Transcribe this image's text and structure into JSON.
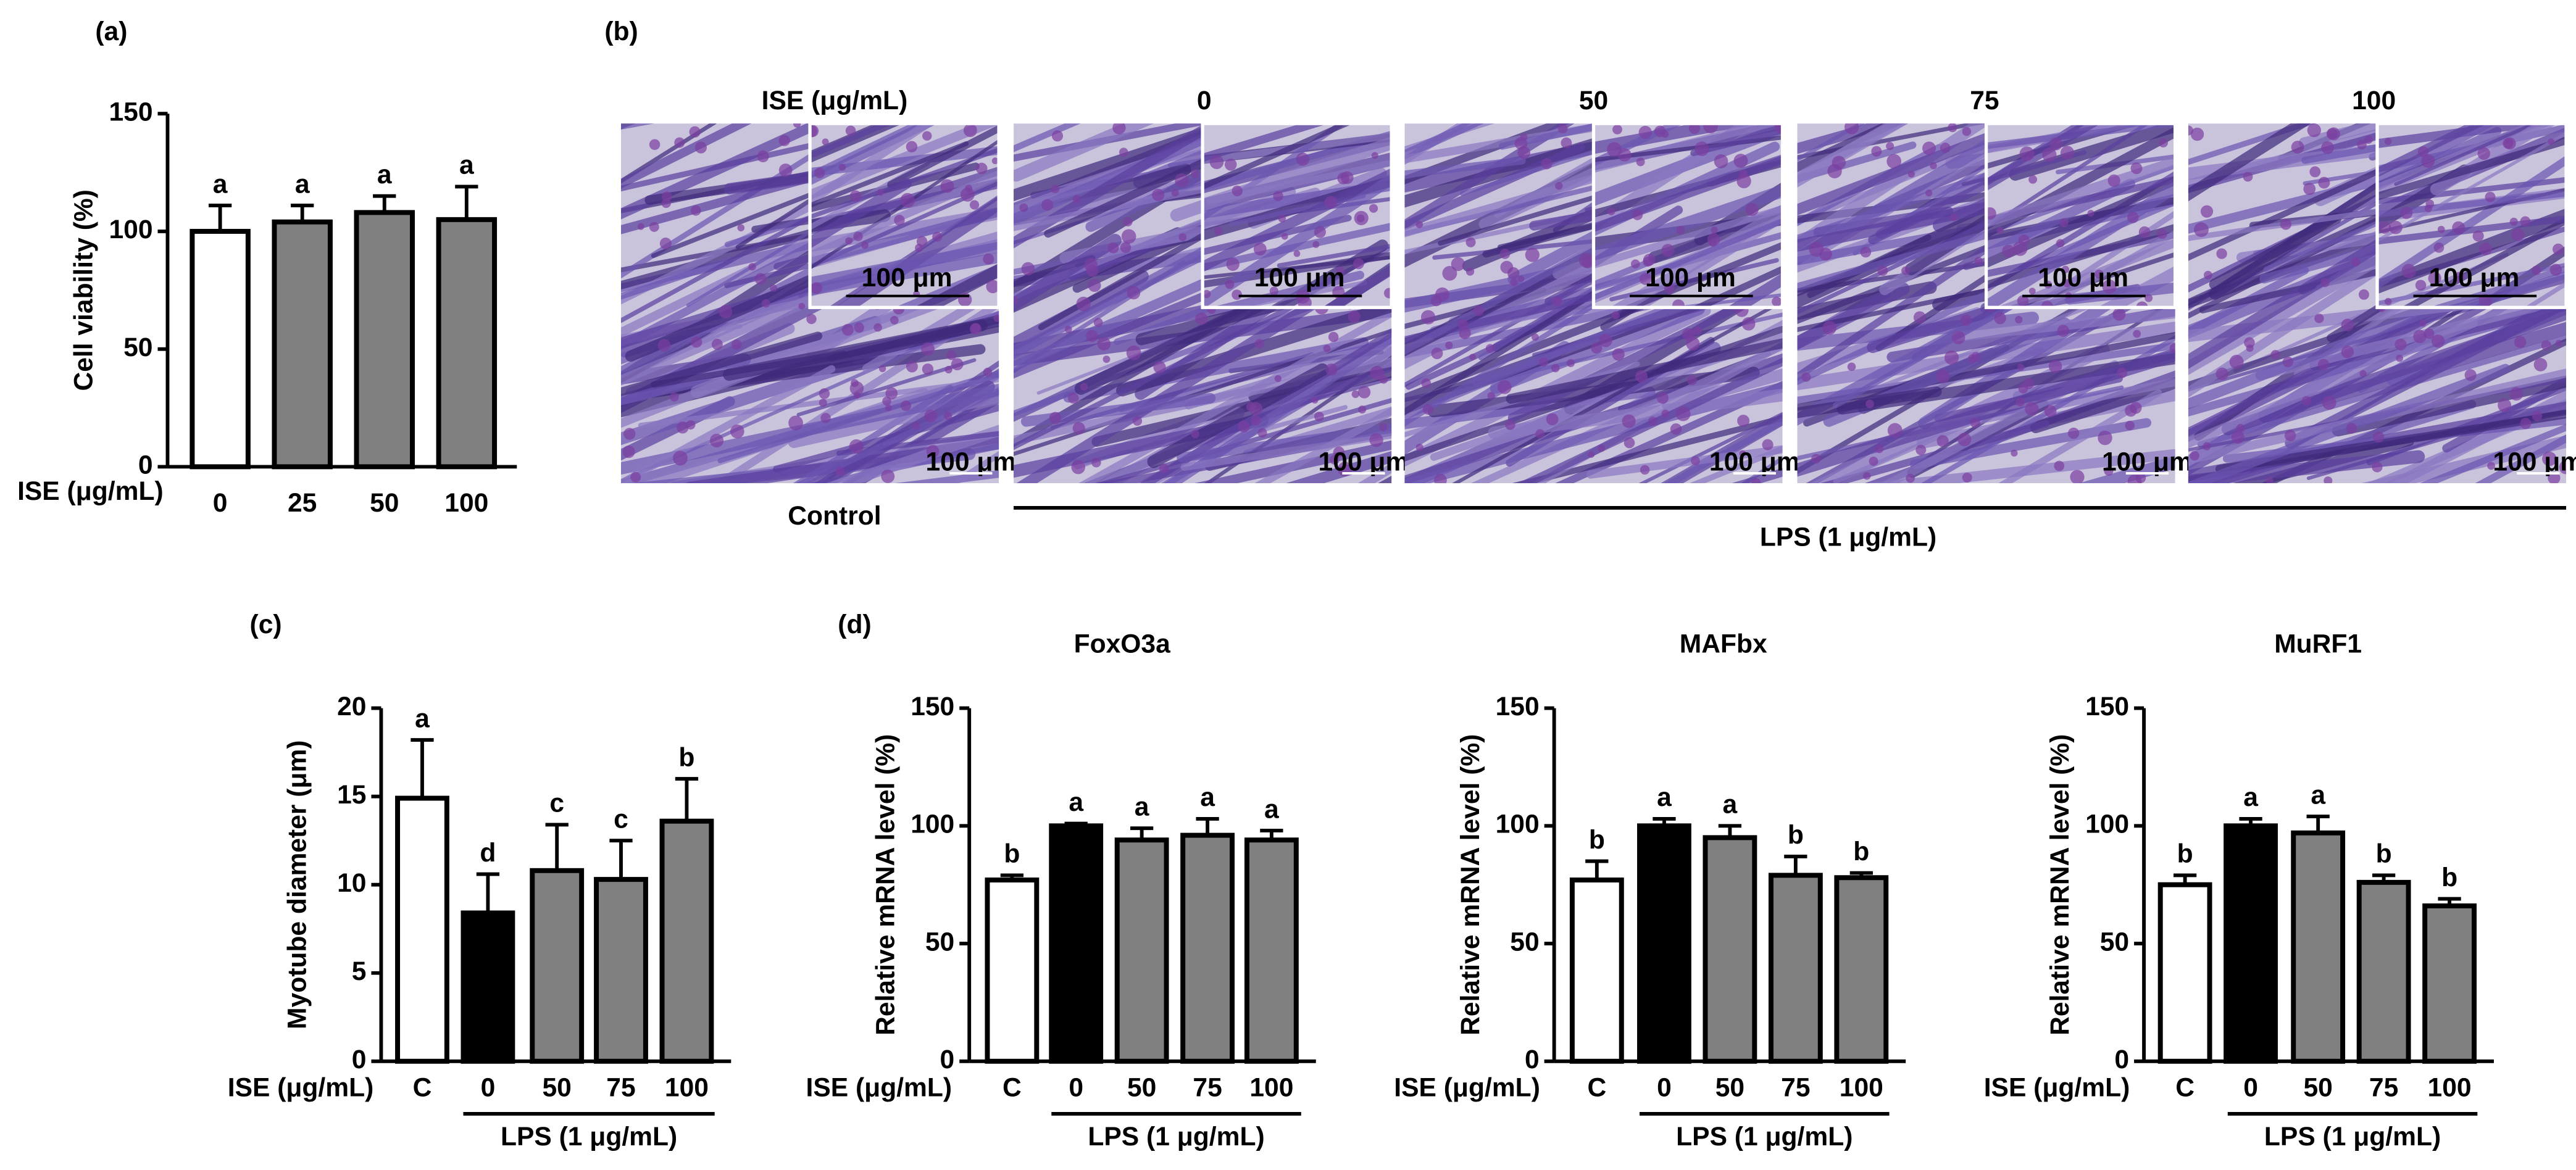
{
  "chart_data": [
    {
      "type": "bar",
      "panel": "(a)",
      "y_label": "Cell viability (%)",
      "x_label": "ISE (μg/mL)",
      "categories": [
        "0",
        "25",
        "50",
        "100"
      ],
      "values": [
        100,
        104,
        108,
        105
      ],
      "errors": [
        11,
        7,
        7,
        14
      ],
      "colors": [
        "#ffffff",
        "#808080",
        "#808080",
        "#808080"
      ],
      "significance": [
        "a",
        "a",
        "a",
        "a"
      ],
      "ylim": [
        0,
        150
      ],
      "yticks": [
        0,
        50,
        100,
        150
      ]
    },
    {
      "type": "bar",
      "panel": "(c)",
      "y_label": "Myotube diameter (μm)",
      "x_label": "ISE (μg/mL)",
      "group_label": "LPS (1 μg/mL)",
      "categories": [
        "C",
        "0",
        "50",
        "75",
        "100"
      ],
      "values": [
        14.9,
        8.4,
        10.8,
        10.3,
        13.6
      ],
      "errors": [
        3.3,
        2.2,
        2.6,
        2.2,
        2.4
      ],
      "colors": [
        "#ffffff",
        "#000000",
        "#808080",
        "#808080",
        "#808080"
      ],
      "significance": [
        "a",
        "d",
        "c",
        "c",
        "b"
      ],
      "ylim": [
        0,
        20
      ],
      "yticks": [
        0,
        5,
        10,
        15,
        20
      ]
    },
    {
      "type": "bar",
      "panel": "(d)",
      "title": "FoxO3a",
      "y_label": "Relative mRNA level (%)",
      "x_label": "ISE (μg/mL)",
      "group_label": "LPS (1 μg/mL)",
      "categories": [
        "C",
        "0",
        "50",
        "75",
        "100"
      ],
      "values": [
        77,
        100,
        94,
        96,
        94
      ],
      "errors": [
        2,
        1,
        5,
        7,
        4
      ],
      "colors": [
        "#ffffff",
        "#000000",
        "#808080",
        "#808080",
        "#808080"
      ],
      "significance": [
        "b",
        "a",
        "a",
        "a",
        "a"
      ],
      "ylim": [
        0,
        150
      ],
      "yticks": [
        0,
        50,
        100,
        150
      ]
    },
    {
      "type": "bar",
      "title": "MAFbx",
      "y_label": "Relative mRNA level (%)",
      "x_label": "ISE (μg/mL)",
      "group_label": "LPS (1 μg/mL)",
      "categories": [
        "C",
        "0",
        "50",
        "75",
        "100"
      ],
      "values": [
        77,
        100,
        95,
        79,
        78
      ],
      "errors": [
        8,
        3,
        5,
        8,
        2
      ],
      "colors": [
        "#ffffff",
        "#000000",
        "#808080",
        "#808080",
        "#808080"
      ],
      "significance": [
        "b",
        "a",
        "a",
        "b",
        "b"
      ],
      "ylim": [
        0,
        150
      ],
      "yticks": [
        0,
        50,
        100,
        150
      ]
    },
    {
      "type": "bar",
      "title": "MuRF1",
      "y_label": "Relative mRNA level (%)",
      "x_label": "ISE (μg/mL)",
      "group_label": "LPS (1 μg/mL)",
      "categories": [
        "C",
        "0",
        "50",
        "75",
        "100"
      ],
      "values": [
        75,
        100,
        97,
        76,
        66
      ],
      "errors": [
        4,
        3,
        7,
        3,
        3
      ],
      "colors": [
        "#ffffff",
        "#000000",
        "#808080",
        "#808080",
        "#808080"
      ],
      "significance": [
        "b",
        "a",
        "a",
        "b",
        "b"
      ],
      "ylim": [
        0,
        150
      ],
      "yticks": [
        0,
        50,
        100,
        150
      ]
    }
  ],
  "figure_b": {
    "panel": "(b)",
    "row_label": "ISE (μg/mL)",
    "columns": [
      "0",
      "50",
      "75",
      "100"
    ],
    "scale_bar": "100 μm",
    "control_label": "Control",
    "group_label": "LPS (1 μg/mL)"
  }
}
